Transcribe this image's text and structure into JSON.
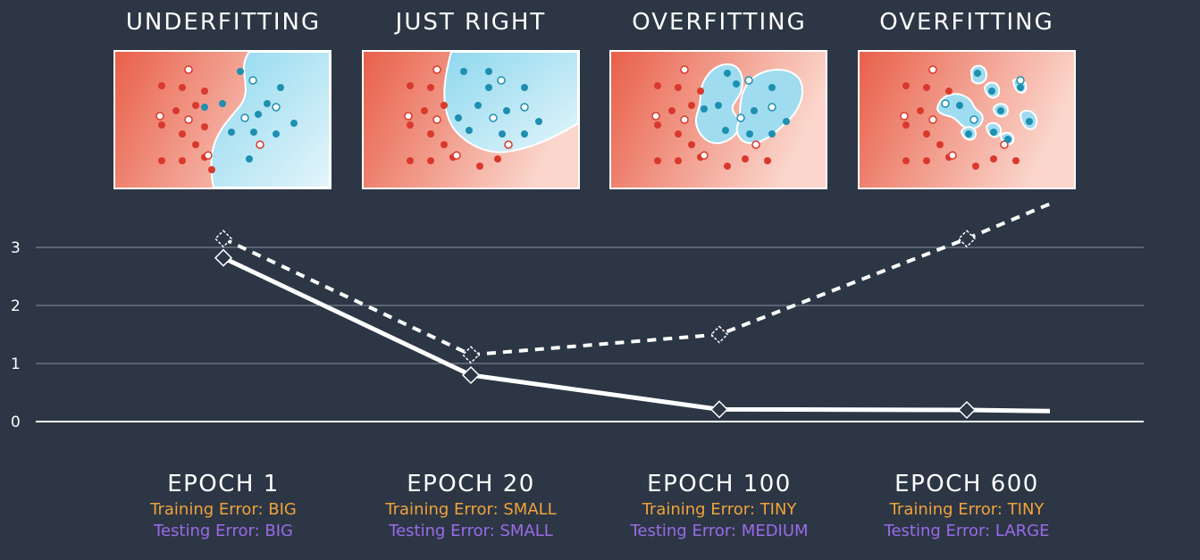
{
  "panels": [
    {
      "title": "UNDERFITTING"
    },
    {
      "title": "JUST RIGHT"
    },
    {
      "title": "OVERFITTING"
    },
    {
      "title": "OVERFITTING"
    }
  ],
  "colors": {
    "background": "#2c3645",
    "red_region": "#e8604a",
    "blue_region": "#9fdcef",
    "train_error": "#f0a23a",
    "test_error": "#9b6be8",
    "line": "#ffffff"
  },
  "epochs": [
    {
      "label": "EPOCH 1",
      "training": "Training Error: BIG",
      "testing": "Testing Error: BIG"
    },
    {
      "label": "EPOCH 20",
      "training": "Training Error: SMALL",
      "testing": "Testing Error: SMALL"
    },
    {
      "label": "EPOCH 100",
      "training": "Training Error: TINY",
      "testing": "Testing Error: MEDIUM"
    },
    {
      "label": "EPOCH 600",
      "training": "Training Error: TINY",
      "testing": "Testing Error: LARGE"
    }
  ],
  "chart_data": {
    "type": "line",
    "x": [
      "EPOCH 1",
      "EPOCH 20",
      "EPOCH 100",
      "EPOCH 600"
    ],
    "ylim": [
      0,
      3.8
    ],
    "yticks": [
      0,
      1,
      2,
      3
    ],
    "grid": true,
    "series": [
      {
        "style": "solid",
        "values": [
          2.82,
          0.8,
          0.21,
          0.2
        ],
        "end_value": 0.18
      },
      {
        "style": "dashed",
        "values": [
          3.15,
          1.15,
          1.5,
          3.15
        ],
        "end_value": 3.75
      }
    ]
  }
}
